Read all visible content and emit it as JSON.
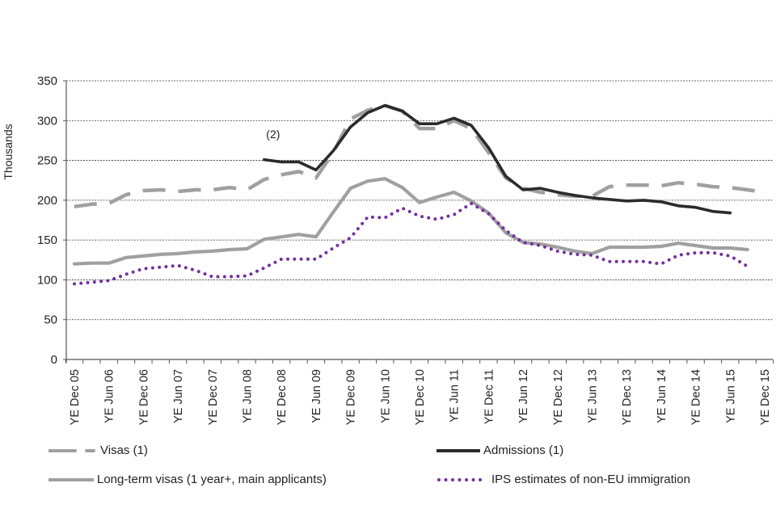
{
  "chart_data": {
    "type": "line",
    "title": "",
    "xlabel": "",
    "ylabel": "Thousands",
    "ylim": [
      0,
      350
    ],
    "yticks": [
      0,
      50,
      100,
      150,
      200,
      250,
      300,
      350
    ],
    "grid": true,
    "legend_placement": "bottom",
    "x": [
      "YE Dec 05",
      "YE Mar 06",
      "YE Jun 06",
      "YE Sep 06",
      "YE Dec 06",
      "YE Mar 07",
      "YE Jun 07",
      "YE Sep 07",
      "YE Dec 07",
      "YE Mar 08",
      "YE Jun 08",
      "YE Sep 08",
      "YE Dec 08",
      "YE Mar 09",
      "YE Jun 09",
      "YE Sep 09",
      "YE Dec 09",
      "YE Mar 10",
      "YE Jun 10",
      "YE Sep 10",
      "YE Dec 10",
      "YE Mar 11",
      "YE Jun 11",
      "YE Sep 11",
      "YE Dec 11",
      "YE Mar 12",
      "YE Jun 12",
      "YE Sep 12",
      "YE Dec 12",
      "YE Mar 13",
      "YE Jun 13",
      "YE Sep 13",
      "YE Dec 13",
      "YE Mar 14",
      "YE Jun 14",
      "YE Sep 14",
      "YE Dec 14",
      "YE Mar 15",
      "YE Jun 15",
      "YE Sep 15",
      "YE Dec 15"
    ],
    "xtick_labels": [
      "YE Dec 05",
      "YE Jun 06",
      "YE Dec 06",
      "YE Jun 07",
      "YE Dec 07",
      "YE Jun 08",
      "YE Dec 08",
      "YE Jun 09",
      "YE Dec 09",
      "YE Jun 10",
      "YE Dec 10",
      "YE Jun 11",
      "YE Dec 11",
      "YE Jun 12",
      "YE Dec 12",
      "YE Jun 13",
      "YE Dec 13",
      "YE Jun 14",
      "YE Dec 14",
      "YE Jun 15",
      "YE Dec 15"
    ],
    "series": [
      {
        "name": "Visas (1)",
        "style": "dashed",
        "color": "#a0a0a0",
        "start_index": 0,
        "values": [
          192,
          195,
          196,
          207,
          212,
          213,
          211,
          213,
          213,
          216,
          213,
          226,
          232,
          236,
          228,
          260,
          302,
          313,
          319,
          312,
          290,
          290,
          300,
          290,
          260,
          228,
          215,
          210,
          207,
          205,
          205,
          217,
          219,
          219,
          218,
          222,
          220,
          217,
          216,
          213,
          210
        ]
      },
      {
        "name": "Admissions (1)",
        "style": "solid",
        "color": "#2b2b2b",
        "start_index": 11,
        "values": [
          251,
          248,
          248,
          238,
          262,
          292,
          310,
          319,
          312,
          296,
          296,
          303,
          294,
          266,
          230,
          213,
          215,
          210,
          206,
          203,
          201,
          199,
          200,
          198,
          193,
          191,
          186,
          184
        ]
      },
      {
        "name": "Long-term visas (1 year+, main applicants)",
        "style": "solid",
        "color": "#a0a0a0",
        "start_index": 0,
        "values": [
          120,
          121,
          121,
          128,
          130,
          132,
          133,
          135,
          136,
          138,
          139,
          151,
          154,
          157,
          154,
          185,
          215,
          224,
          227,
          216,
          197,
          204,
          210,
          199,
          184,
          159,
          147,
          145,
          141,
          136,
          133,
          141,
          141,
          141,
          142,
          146,
          143,
          140,
          140,
          138
        ]
      },
      {
        "name": "IPS estimates of non-EU immigration",
        "style": "dotted",
        "color": "#7030a0",
        "start_index": 0,
        "values": [
          95,
          97,
          99,
          107,
          114,
          116,
          118,
          112,
          104,
          104,
          105,
          115,
          126,
          126,
          126,
          140,
          153,
          179,
          178,
          190,
          180,
          176,
          182,
          196,
          183,
          162,
          147,
          143,
          136,
          132,
          131,
          123,
          123,
          123,
          120,
          131,
          134,
          134,
          130,
          117
        ]
      }
    ],
    "annotations": [
      {
        "text": "(2)",
        "x_index": 11,
        "y": 276
      }
    ]
  },
  "legend": {
    "visas": "Visas (1)",
    "admissions": "Admissions (1)",
    "long_term": "Long-term visas (1 year+, main applicants)",
    "ips": "IPS estimates of non-EU immigration"
  }
}
